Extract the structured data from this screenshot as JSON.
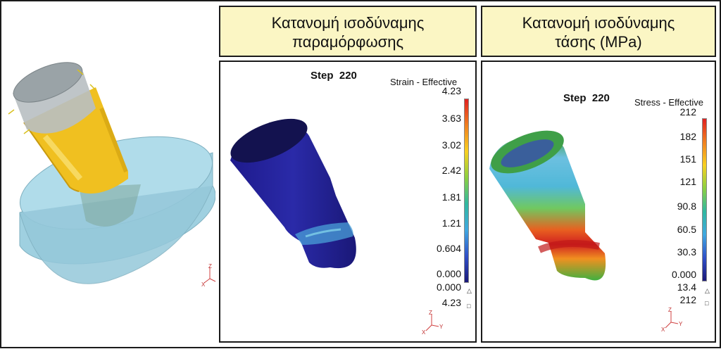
{
  "headers": {
    "strain": {
      "line1": "Κατανομή ισοδύναμης",
      "line2": "παραμόρφωσης"
    },
    "stress": {
      "line1": "Κατανομή ισοδύναμης",
      "line2": "τάσης (MPa)"
    }
  },
  "strain_panel": {
    "step_label": "Step",
    "step_value": "220",
    "legend_title": "Strain - Effective",
    "ticks": [
      "4.23",
      "3.63",
      "3.02",
      "2.42",
      "1.81",
      "1.21",
      "0.604",
      "0.000"
    ],
    "min_value": "0.000",
    "max_value": "4.23"
  },
  "stress_panel": {
    "step_label": "Step",
    "step_value": "220",
    "legend_title": "Stress - Effective",
    "ticks": [
      "212",
      "182",
      "151",
      "121",
      "90.8",
      "60.5",
      "30.3",
      "0.000"
    ],
    "min_value": "13.4",
    "max_value": "212"
  },
  "axis_labels": {
    "z": "Z",
    "x": "X",
    "y": "Y"
  },
  "colors": {
    "header_bg": "#fbf6c4",
    "border": "#1a1a1a",
    "workpiece": "#f2c21b",
    "die": "#a8d8e6"
  }
}
